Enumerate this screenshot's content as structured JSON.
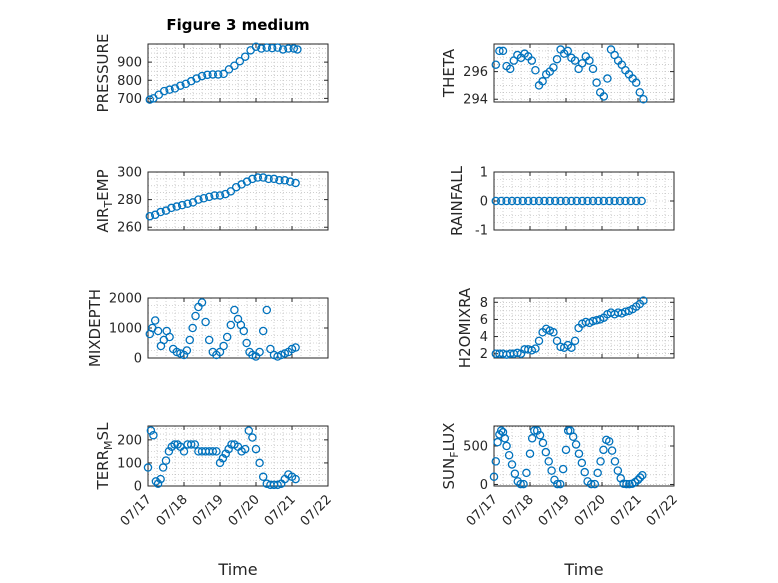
{
  "figure_title": "Figure 3 medium",
  "colors": {
    "marker": "#0072BD",
    "axis": "#262626",
    "grid": "#b0b0b0"
  },
  "chart_data": [
    {
      "type": "scatter",
      "ylabel": "PRESSURE",
      "title": "Figure 3 medium",
      "xlabel": "",
      "ylim": [
        680,
        1000
      ],
      "yticks": [
        "700",
        "800",
        "900"
      ],
      "yticks_v": [
        700,
        800,
        900
      ],
      "xlim": [
        17,
        22
      ],
      "grid": true,
      "x": [
        17.05,
        17.15,
        17.3,
        17.45,
        17.6,
        17.75,
        17.9,
        18.05,
        18.2,
        18.35,
        18.5,
        18.65,
        18.8,
        18.95,
        19.1,
        19.25,
        19.4,
        19.55,
        19.7,
        19.85,
        20.0,
        20.15,
        20.3,
        20.45,
        20.6,
        20.75,
        20.9,
        21.05,
        21.15
      ],
      "y": [
        693,
        700,
        720,
        740,
        748,
        755,
        770,
        780,
        795,
        810,
        823,
        830,
        832,
        832,
        835,
        860,
        880,
        905,
        930,
        965,
        985,
        975,
        980,
        977,
        980,
        970,
        975,
        975,
        970
      ]
    },
    {
      "type": "scatter",
      "ylabel": "THETA",
      "title": "",
      "xlabel": "",
      "ylim": [
        293.8,
        298
      ],
      "yticks": [
        "294",
        "296"
      ],
      "yticks_v": [
        294,
        296
      ],
      "xlim": [
        17,
        22
      ],
      "grid": true,
      "x": [
        17.05,
        17.15,
        17.25,
        17.35,
        17.45,
        17.55,
        17.65,
        17.75,
        17.85,
        17.95,
        18.05,
        18.15,
        18.25,
        18.35,
        18.45,
        18.55,
        18.65,
        18.75,
        18.85,
        18.95,
        19.05,
        19.15,
        19.25,
        19.35,
        19.45,
        19.55,
        19.65,
        19.75,
        19.85,
        19.95,
        20.05,
        20.15,
        20.25,
        20.35,
        20.45,
        20.55,
        20.65,
        20.75,
        20.85,
        20.95,
        21.05,
        21.15
      ],
      "y": [
        296.5,
        297.5,
        297.5,
        296.4,
        296.2,
        296.8,
        297.2,
        297.0,
        297.3,
        297.1,
        296.8,
        296.1,
        295.0,
        295.3,
        295.8,
        296.0,
        296.3,
        296.9,
        297.6,
        297.3,
        297.5,
        297.0,
        296.8,
        296.2,
        296.6,
        297.1,
        296.8,
        296.2,
        295.2,
        294.5,
        294.2,
        295.5,
        297.6,
        297.2,
        296.8,
        296.5,
        296.1,
        295.8,
        295.5,
        295.2,
        294.5,
        294.0
      ]
    },
    {
      "type": "scatter",
      "ylabel": "AIR_TEMP",
      "title": "",
      "xlabel": "",
      "ylim": [
        258,
        300
      ],
      "yticks": [
        "260",
        "280",
        "300"
      ],
      "yticks_v": [
        260,
        280,
        300
      ],
      "xlim": [
        17,
        22
      ],
      "grid": true,
      "x": [
        17.05,
        17.2,
        17.35,
        17.5,
        17.65,
        17.8,
        17.95,
        18.1,
        18.25,
        18.4,
        18.55,
        18.7,
        18.85,
        19.0,
        19.15,
        19.3,
        19.45,
        19.6,
        19.75,
        19.9,
        20.05,
        20.2,
        20.35,
        20.5,
        20.65,
        20.8,
        20.95,
        21.1
      ],
      "y": [
        268,
        269,
        271,
        272,
        274,
        275,
        276,
        277,
        278,
        280,
        281,
        282,
        283,
        283,
        284,
        286,
        289,
        291,
        293,
        295,
        296,
        296,
        295,
        295,
        294,
        294,
        293,
        292
      ]
    },
    {
      "type": "scatter",
      "ylabel": "RAINFALL",
      "title": "",
      "xlabel": "",
      "ylim": [
        -1,
        1
      ],
      "yticks": [
        "-1",
        "0",
        "1"
      ],
      "yticks_v": [
        -1,
        0,
        1
      ],
      "xlim": [
        17,
        22
      ],
      "grid": true,
      "x": [
        17.05,
        17.2,
        17.35,
        17.5,
        17.65,
        17.8,
        17.95,
        18.1,
        18.25,
        18.4,
        18.55,
        18.7,
        18.85,
        19.0,
        19.15,
        19.3,
        19.45,
        19.6,
        19.75,
        19.9,
        20.05,
        20.2,
        20.35,
        20.5,
        20.65,
        20.8,
        20.95,
        21.1
      ],
      "y": [
        0,
        0,
        0,
        0,
        0,
        0,
        0,
        0,
        0,
        0,
        0,
        0,
        0,
        0,
        0,
        0,
        0,
        0,
        0,
        0,
        0,
        0,
        0,
        0,
        0,
        0,
        0,
        0
      ]
    },
    {
      "type": "scatter",
      "ylabel": "MIXDEPTH",
      "title": "",
      "xlabel": "",
      "ylim": [
        0,
        2000
      ],
      "yticks": [
        "0",
        "1000",
        "2000"
      ],
      "yticks_v": [
        0,
        1000,
        2000
      ],
      "xlim": [
        17,
        22
      ],
      "grid": true,
      "x": [
        17.05,
        17.12,
        17.2,
        17.28,
        17.36,
        17.44,
        17.52,
        17.6,
        17.7,
        17.8,
        17.9,
        18.0,
        18.08,
        18.16,
        18.24,
        18.32,
        18.4,
        18.5,
        18.6,
        18.7,
        18.8,
        18.9,
        19.0,
        19.1,
        19.2,
        19.3,
        19.4,
        19.5,
        19.58,
        19.66,
        19.74,
        19.82,
        19.9,
        20.0,
        20.1,
        20.2,
        20.3,
        20.4,
        20.5,
        20.6,
        20.7,
        20.8,
        20.9,
        21.0,
        21.1
      ],
      "y": [
        800,
        1000,
        1250,
        900,
        400,
        600,
        900,
        700,
        300,
        200,
        150,
        100,
        250,
        600,
        1000,
        1400,
        1700,
        1850,
        1200,
        600,
        200,
        100,
        200,
        400,
        700,
        1100,
        1600,
        1300,
        1100,
        900,
        500,
        200,
        100,
        50,
        200,
        900,
        1600,
        300,
        100,
        50,
        100,
        150,
        200,
        300,
        350
      ]
    },
    {
      "type": "scatter",
      "ylabel": "H2OMIXRA",
      "title": "",
      "xlabel": "",
      "ylim": [
        1.5,
        8.5
      ],
      "yticks": [
        "2",
        "4",
        "6",
        "8"
      ],
      "yticks_v": [
        2,
        4,
        6,
        8
      ],
      "xlim": [
        17,
        22
      ],
      "grid": true,
      "x": [
        17.05,
        17.15,
        17.25,
        17.35,
        17.45,
        17.55,
        17.65,
        17.75,
        17.85,
        17.95,
        18.05,
        18.15,
        18.25,
        18.35,
        18.45,
        18.55,
        18.65,
        18.75,
        18.85,
        18.95,
        19.05,
        19.15,
        19.25,
        19.35,
        19.45,
        19.55,
        19.65,
        19.75,
        19.85,
        19.95,
        20.05,
        20.15,
        20.25,
        20.35,
        20.45,
        20.55,
        20.65,
        20.75,
        20.85,
        20.95,
        21.05,
        21.15
      ],
      "y": [
        2.0,
        2.0,
        2.0,
        1.9,
        2.0,
        2.0,
        2.1,
        2.0,
        2.5,
        2.5,
        2.4,
        2.6,
        3.5,
        4.5,
        4.9,
        4.7,
        4.5,
        3.5,
        2.8,
        2.7,
        3.0,
        2.7,
        3.5,
        5.0,
        5.5,
        5.7,
        5.6,
        5.8,
        5.9,
        6.0,
        6.2,
        6.6,
        6.8,
        6.6,
        6.8,
        6.7,
        6.9,
        7.0,
        7.2,
        7.5,
        7.8,
        8.2
      ]
    },
    {
      "type": "scatter",
      "ylabel": "TERR_MSL",
      "title": "",
      "xlabel": "Time",
      "ylim": [
        0,
        260
      ],
      "yticks": [
        "0",
        "100",
        "200"
      ],
      "yticks_v": [
        0,
        100,
        200
      ],
      "xlim": [
        17,
        22
      ],
      "xticks": [
        "07/17",
        "07/18",
        "07/19",
        "07/20",
        "07/21",
        "07/22"
      ],
      "xticks_v": [
        17,
        18,
        19,
        20,
        21,
        22
      ],
      "grid": true,
      "x": [
        17.0,
        17.08,
        17.15,
        17.22,
        17.28,
        17.35,
        17.42,
        17.5,
        17.58,
        17.66,
        17.74,
        17.82,
        17.9,
        18.0,
        18.1,
        18.2,
        18.3,
        18.4,
        18.5,
        18.6,
        18.7,
        18.8,
        18.9,
        19.0,
        19.08,
        19.16,
        19.24,
        19.32,
        19.4,
        19.5,
        19.6,
        19.7,
        19.8,
        19.9,
        20.0,
        20.1,
        20.2,
        20.3,
        20.4,
        20.5,
        20.6,
        20.7,
        20.8,
        20.9,
        21.0,
        21.1
      ],
      "y": [
        80,
        240,
        220,
        20,
        10,
        30,
        80,
        110,
        150,
        170,
        180,
        180,
        170,
        150,
        180,
        180,
        180,
        150,
        150,
        150,
        150,
        150,
        150,
        100,
        120,
        140,
        160,
        180,
        180,
        170,
        150,
        160,
        240,
        210,
        160,
        100,
        40,
        10,
        5,
        5,
        5,
        10,
        30,
        50,
        40,
        30
      ]
    },
    {
      "type": "scatter",
      "ylabel": "SUN_FLUX",
      "title": "",
      "xlabel": "Time",
      "ylim": [
        -20,
        760
      ],
      "yticks": [
        "0",
        "500"
      ],
      "yticks_v": [
        0,
        500
      ],
      "xlim": [
        17,
        22
      ],
      "xticks": [
        "07/17",
        "07/18",
        "07/19",
        "07/20",
        "07/21",
        "07/22"
      ],
      "xticks_v": [
        17,
        18,
        19,
        20,
        21,
        22
      ],
      "grid": true,
      "x": [
        17.0,
        17.05,
        17.1,
        17.15,
        17.2,
        17.25,
        17.3,
        17.35,
        17.42,
        17.5,
        17.58,
        17.66,
        17.74,
        17.82,
        17.9,
        18.0,
        18.06,
        18.12,
        18.2,
        18.28,
        18.36,
        18.44,
        18.52,
        18.6,
        18.68,
        18.76,
        18.84,
        18.92,
        19.0,
        19.06,
        19.12,
        19.2,
        19.28,
        19.36,
        19.44,
        19.52,
        19.6,
        19.7,
        19.8,
        19.88,
        19.96,
        20.04,
        20.12,
        20.2,
        20.28,
        20.36,
        20.44,
        20.52,
        20.6,
        20.68,
        20.76,
        20.84,
        20.92,
        21.0,
        21.06,
        21.12
      ],
      "y": [
        100,
        300,
        550,
        650,
        700,
        680,
        600,
        500,
        380,
        260,
        140,
        40,
        5,
        5,
        150,
        400,
        600,
        700,
        700,
        640,
        540,
        420,
        300,
        180,
        60,
        5,
        5,
        200,
        450,
        700,
        700,
        620,
        520,
        400,
        280,
        160,
        40,
        5,
        5,
        150,
        300,
        450,
        580,
        560,
        440,
        300,
        180,
        80,
        10,
        5,
        5,
        10,
        30,
        60,
        90,
        120
      ]
    }
  ]
}
